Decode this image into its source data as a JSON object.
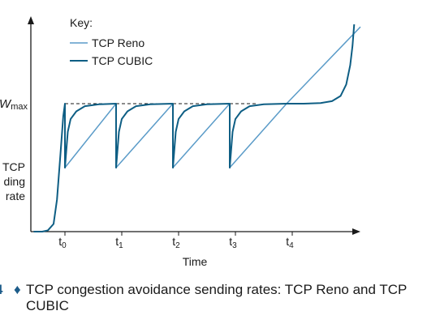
{
  "chart_data": {
    "type": "line",
    "title": "",
    "xlabel": "Time",
    "ylabel_lines": [
      "TCP",
      "ding",
      "rate"
    ],
    "wmax_label": "W",
    "wmax_sub": "max",
    "key_title": "Key:",
    "x_ticks": [
      {
        "base": "t",
        "sub": "0"
      },
      {
        "base": "t",
        "sub": "1"
      },
      {
        "base": "t",
        "sub": "2"
      },
      {
        "base": "t",
        "sub": "3"
      },
      {
        "base": "t",
        "sub": "4"
      }
    ],
    "x_range": [
      -0.6,
      5.2
    ],
    "y_range": [
      0,
      1.55
    ],
    "wmax": 1.0,
    "series": [
      {
        "name": "TCP Reno",
        "color": "#5a9bc8",
        "points": [
          [
            0,
            1.0
          ],
          [
            0,
            0.5
          ],
          [
            0.9,
            1.0
          ],
          [
            0.9,
            0.5
          ],
          [
            1.9,
            1.0
          ],
          [
            1.9,
            0.5
          ],
          [
            2.9,
            1.0
          ],
          [
            2.9,
            0.5
          ],
          [
            3.9,
            1.0
          ],
          [
            5.2,
            1.6
          ]
        ]
      },
      {
        "name": "TCP CUBIC",
        "color": "#0e5e84",
        "points": [
          [
            -0.55,
            0.0
          ],
          [
            -0.4,
            0.0
          ],
          [
            -0.3,
            0.01
          ],
          [
            -0.2,
            0.06
          ],
          [
            -0.14,
            0.25
          ],
          [
            -0.08,
            0.6
          ],
          [
            -0.03,
            0.9
          ],
          [
            0,
            1.0
          ],
          [
            0,
            0.5
          ],
          [
            0.05,
            0.78
          ],
          [
            0.1,
            0.88
          ],
          [
            0.2,
            0.94
          ],
          [
            0.35,
            0.98
          ],
          [
            0.6,
            0.995
          ],
          [
            0.9,
            1.0
          ],
          [
            0.9,
            0.5
          ],
          [
            0.95,
            0.78
          ],
          [
            1.0,
            0.88
          ],
          [
            1.1,
            0.94
          ],
          [
            1.25,
            0.98
          ],
          [
            1.5,
            0.995
          ],
          [
            1.9,
            1.0
          ],
          [
            1.9,
            0.5
          ],
          [
            1.95,
            0.78
          ],
          [
            2.0,
            0.88
          ],
          [
            2.1,
            0.94
          ],
          [
            2.25,
            0.98
          ],
          [
            2.5,
            0.995
          ],
          [
            2.9,
            1.0
          ],
          [
            2.9,
            0.5
          ],
          [
            2.95,
            0.78
          ],
          [
            3.0,
            0.88
          ],
          [
            3.1,
            0.94
          ],
          [
            3.25,
            0.98
          ],
          [
            3.5,
            0.995
          ],
          [
            3.9,
            1.0
          ],
          [
            4.2,
            1.0
          ],
          [
            4.5,
            1.005
          ],
          [
            4.7,
            1.02
          ],
          [
            4.85,
            1.06
          ],
          [
            4.95,
            1.15
          ],
          [
            5.02,
            1.3
          ],
          [
            5.06,
            1.45
          ],
          [
            5.09,
            1.62
          ]
        ]
      }
    ],
    "grid": false,
    "legend_position": "top-left"
  },
  "caption": {
    "figure_number": "4",
    "bullet": "♦",
    "text": "TCP congestion avoidance sending rates: TCP Reno and TCP CUBIC"
  }
}
